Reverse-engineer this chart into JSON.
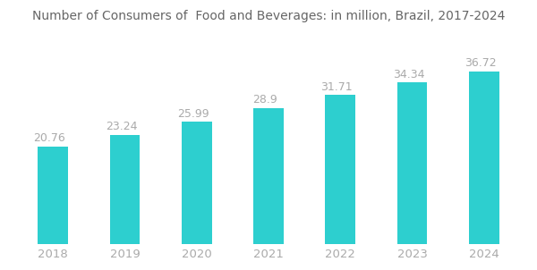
{
  "title": "Number of Consumers of  Food and Beverages: in million, Brazil, 2017-2024",
  "categories": [
    "2018",
    "2019",
    "2020",
    "2021",
    "2022",
    "2023",
    "2024"
  ],
  "values": [
    20.76,
    23.24,
    25.99,
    28.9,
    31.71,
    34.34,
    36.72
  ],
  "bar_color": "#2DCFCF",
  "label_color": "#aaaaaa",
  "title_color": "#666666",
  "title_fontsize": 10,
  "label_fontsize": 9,
  "tick_fontsize": 9.5,
  "background_color": "#ffffff",
  "ylim": [
    0,
    44
  ],
  "bar_width": 0.42
}
